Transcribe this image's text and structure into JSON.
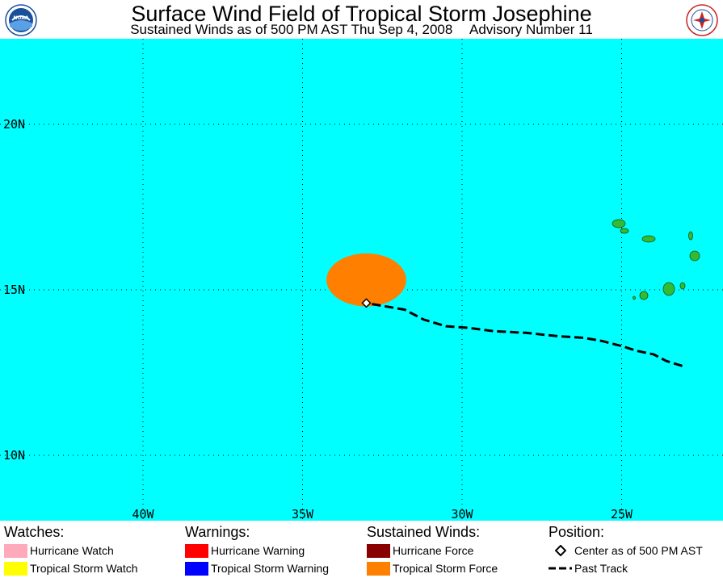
{
  "header": {
    "title": "Surface Wind Field of Tropical Storm Josephine",
    "subtitle_left": "Sustained Winds as of 500 PM AST Thu Sep 4, 2008",
    "subtitle_right": "Advisory Number 11",
    "left_logo": "noaa-logo",
    "right_logo": "nws-logo"
  },
  "map": {
    "ocean_color": "#00ffff",
    "land_color": "#33bb33",
    "wind_field_color": "#ff8000",
    "lon_labels": [
      "40W",
      "35W",
      "30W",
      "25W"
    ],
    "lat_labels": [
      "20N",
      "15N",
      "10N"
    ],
    "lon_values": [
      -40,
      -35,
      -30,
      -25
    ],
    "lat_values": [
      20,
      15,
      10
    ],
    "center": {
      "lon": -33.0,
      "lat": 14.6
    },
    "wind_field_ts": {
      "lon": -33.0,
      "lat": 15.3,
      "radius_lon_deg": 1.25,
      "radius_lat_deg": 0.8
    },
    "past_track": [
      [
        -23.1,
        12.7
      ],
      [
        -23.6,
        12.85
      ],
      [
        -24.0,
        13.05
      ],
      [
        -24.5,
        13.15
      ],
      [
        -25.0,
        13.3
      ],
      [
        -25.6,
        13.45
      ],
      [
        -26.2,
        13.55
      ],
      [
        -27.0,
        13.6
      ],
      [
        -28.0,
        13.7
      ],
      [
        -29.0,
        13.75
      ],
      [
        -29.8,
        13.85
      ],
      [
        -30.5,
        13.9
      ],
      [
        -31.2,
        14.1
      ],
      [
        -31.8,
        14.4
      ],
      [
        -32.4,
        14.5
      ],
      [
        -33.0,
        14.6
      ]
    ]
  },
  "legend": {
    "watches": {
      "heading": "Watches:",
      "items": [
        {
          "label": "Hurricane Watch",
          "color": "#ffaabb"
        },
        {
          "label": "Tropical Storm Watch",
          "color": "#ffff00"
        }
      ]
    },
    "warnings": {
      "heading": "Warnings:",
      "items": [
        {
          "label": "Hurricane Warning",
          "color": "#ff0000"
        },
        {
          "label": "Tropical Storm Warning",
          "color": "#0000ff"
        }
      ]
    },
    "sustained": {
      "heading": "Sustained Winds:",
      "items": [
        {
          "label": "Hurricane Force",
          "color": "#880000"
        },
        {
          "label": "Tropical Storm Force",
          "color": "#ff8000"
        }
      ]
    },
    "position": {
      "heading": "Position:",
      "center_label": "Center as of 500 PM AST",
      "track_label": "Past Track"
    }
  }
}
